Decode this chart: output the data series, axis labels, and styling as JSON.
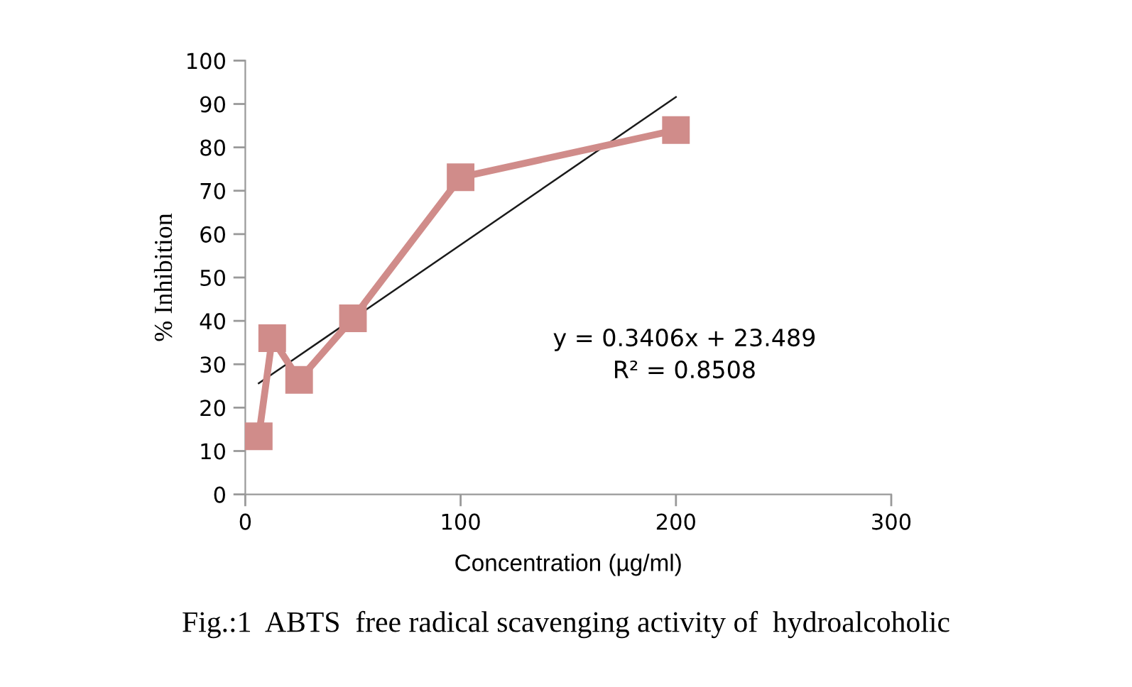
{
  "chart_data": {
    "type": "line",
    "xlabel": "Concentration (µg/ml)",
    "ylabel": "% Inhibition",
    "series": [
      {
        "x": [
          6.25,
          12.5,
          25,
          50,
          100,
          200
        ],
        "values": [
          13.4,
          36.0,
          26.4,
          40.6,
          73.1,
          84.0
        ],
        "color": "#d08c8a",
        "marker": "square"
      },
      {
        "x": [
          6.25,
          200
        ],
        "values": [
          25.6,
          91.6
        ],
        "color": "#1a1a1a",
        "marker": "none"
      }
    ],
    "xlim": [
      0,
      300
    ],
    "xticks": [
      0,
      100,
      200,
      300
    ],
    "ylim": [
      0,
      100
    ],
    "yticks": [
      0,
      10,
      20,
      30,
      40,
      50,
      60,
      70,
      80,
      90,
      100
    ],
    "grid": false,
    "legend": false,
    "annotations": [
      "y = 0.3406x + 23.489\nR² = 0.8508",
      "Fig.:1  ABTS  free radical scavenging activity of  hydroalcoholic"
    ]
  }
}
